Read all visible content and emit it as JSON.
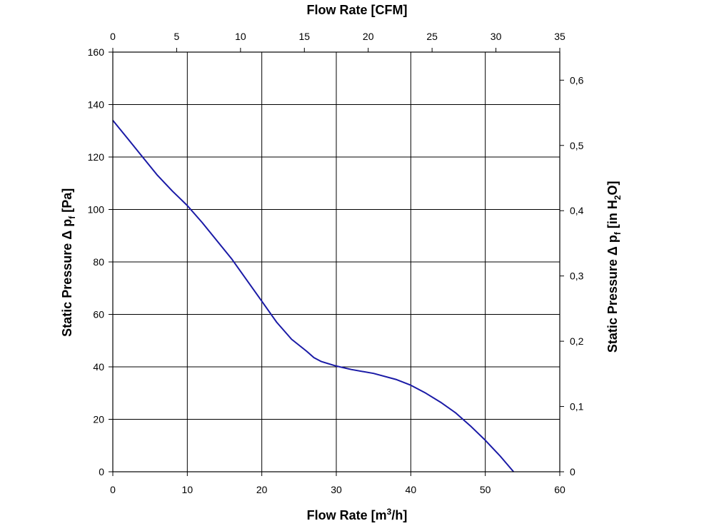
{
  "chart_data": {
    "type": "line",
    "titles": {
      "top_prefix": "Flow Rate [CFM]",
      "bottom_prefix": "Flow Rate [m",
      "bottom_sup": "3",
      "bottom_suffix": "/h]",
      "left_prefix": "Static Pressure Δ p",
      "left_sub": "f",
      "left_suffix": " [Pa]",
      "right_prefix": "Static Pressure Δ p",
      "right_sub": "f",
      "right_mid": " [in H",
      "right_sub2": "2",
      "right_suffix": "O]"
    },
    "x_bottom": {
      "min": 0,
      "max": 60,
      "ticks": [
        "0",
        "10",
        "20",
        "30",
        "40",
        "50",
        "60"
      ]
    },
    "x_top": {
      "min": 0,
      "max": 35,
      "ticks": [
        "0",
        "5",
        "10",
        "15",
        "20",
        "25",
        "30",
        "35"
      ]
    },
    "y_left": {
      "min": 0,
      "max": 160,
      "ticks": [
        "0",
        "20",
        "40",
        "60",
        "80",
        "100",
        "120",
        "140",
        "160"
      ]
    },
    "y_right": {
      "min": 0,
      "max": 0.643,
      "ticks": [
        {
          "value": 0,
          "label": "0"
        },
        {
          "value": 0.1,
          "label": "0,1"
        },
        {
          "value": 0.2,
          "label": "0,2"
        },
        {
          "value": 0.3,
          "label": "0,3"
        },
        {
          "value": 0.4,
          "label": "0,4"
        },
        {
          "value": 0.5,
          "label": "0,5"
        },
        {
          "value": 0.6,
          "label": "0,6"
        }
      ]
    },
    "grid": true,
    "series": [
      {
        "color": "#1a1aa6",
        "points": [
          [
            0,
            134
          ],
          [
            2,
            127
          ],
          [
            4,
            120
          ],
          [
            6,
            113
          ],
          [
            8,
            107
          ],
          [
            10,
            101.5
          ],
          [
            12,
            95
          ],
          [
            14,
            88
          ],
          [
            16,
            81
          ],
          [
            18,
            73
          ],
          [
            20,
            65
          ],
          [
            22,
            57
          ],
          [
            24,
            50.5
          ],
          [
            26,
            46
          ],
          [
            27,
            43.5
          ],
          [
            28,
            42
          ],
          [
            30,
            40.3
          ],
          [
            32,
            39
          ],
          [
            35,
            37.5
          ],
          [
            38,
            35.2
          ],
          [
            40,
            33
          ],
          [
            42,
            30
          ],
          [
            44,
            26.5
          ],
          [
            46,
            22.5
          ],
          [
            48,
            17.5
          ],
          [
            50,
            12
          ],
          [
            52,
            6
          ],
          [
            53.8,
            0
          ]
        ]
      }
    ]
  }
}
